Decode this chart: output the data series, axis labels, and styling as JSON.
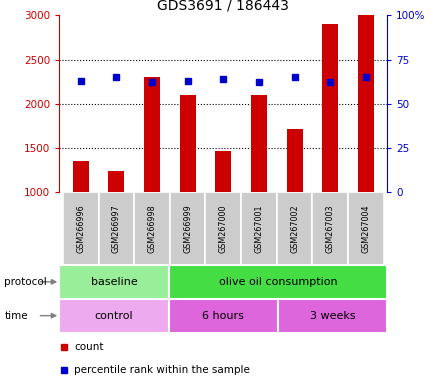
{
  "title": "GDS3691 / 186443",
  "samples": [
    "GSM266996",
    "GSM266997",
    "GSM266998",
    "GSM266999",
    "GSM267000",
    "GSM267001",
    "GSM267002",
    "GSM267003",
    "GSM267004"
  ],
  "count_values": [
    1350,
    1240,
    2300,
    2100,
    1460,
    2100,
    1710,
    2900,
    3000
  ],
  "percentile_values": [
    63,
    65,
    62,
    63,
    64,
    62,
    65,
    62,
    65
  ],
  "count_base": 1000,
  "ylim_left": [
    1000,
    3000
  ],
  "ylim_right": [
    0,
    100
  ],
  "yticks_left": [
    1000,
    1500,
    2000,
    2500,
    3000
  ],
  "yticks_right": [
    0,
    25,
    50,
    75,
    100
  ],
  "bar_color": "#cc0000",
  "dot_color": "#0000cc",
  "protocol_labels": [
    {
      "text": "baseline",
      "start": 0,
      "end": 3,
      "color": "#99ee99"
    },
    {
      "text": "olive oil consumption",
      "start": 3,
      "end": 9,
      "color": "#44dd44"
    }
  ],
  "time_labels": [
    {
      "text": "control",
      "start": 0,
      "end": 3,
      "color": "#eeaaee"
    },
    {
      "text": "6 hours",
      "start": 3,
      "end": 6,
      "color": "#dd66dd"
    },
    {
      "text": "3 weeks",
      "start": 6,
      "end": 9,
      "color": "#dd66dd"
    }
  ],
  "legend_count_color": "#cc0000",
  "legend_dot_color": "#0000cc",
  "legend_count_label": "count",
  "legend_percentile_label": "percentile rank within the sample"
}
